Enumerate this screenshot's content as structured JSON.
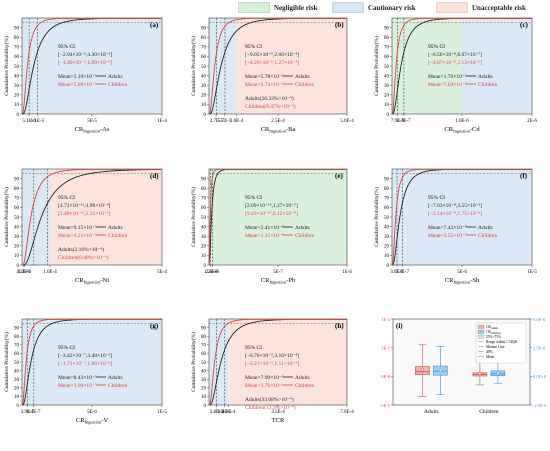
{
  "legend": {
    "items": [
      {
        "label": "Negligible risk",
        "color": "#d6efd9"
      },
      {
        "label": "Cautionary risk",
        "color": "#d7e6f5"
      },
      {
        "label": "Unacceptable risk",
        "color": "#fbe3dc"
      }
    ]
  },
  "colors": {
    "adults": "#222222",
    "children": "#d9443a",
    "cautionary": "#dbe8f6",
    "negligible": "#d9f0dc",
    "unacceptable": "#fbe4dd",
    "box_adults_fill": "#f4a3a0",
    "box_children_fill": "#8ec9ef"
  },
  "chart_data": [
    {
      "type": "line",
      "panel": "(a)",
      "xlabel_main": "CR",
      "xlabel_sub": "Ingestion",
      "xlabel_tail": "-As",
      "ylabel": "Cumulative Probability(%)",
      "xlim": [
        0,
        0.0001
      ],
      "ylim": [
        0,
        100
      ],
      "yticks": [
        0,
        10,
        20,
        30,
        40,
        50,
        60,
        70,
        80,
        90
      ],
      "xtick_labels": [
        "5.1E-6",
        "1.1E-5",
        "5E-5",
        "1E-4"
      ],
      "xtick_values": [
        5.1e-06,
        1.1e-05,
        5e-05,
        0.0001
      ],
      "regions": [
        {
          "zone": "cautionary",
          "from": 0,
          "to": 0.0001
        }
      ],
      "series": [
        {
          "name": "Adults",
          "mean": 1.1e-05
        },
        {
          "name": "Children",
          "mean": 5.1e-06
        }
      ],
      "ci_title": "95% CI",
      "ci_adults": "[−2.94×10⁻⁶,4.30×10⁻⁵]",
      "ci_children": "[−1.40×10⁻⁶,1.99×10⁻⁵]",
      "mean_adults": "Mean=1.10×10⁻⁵",
      "mean_children": "Mean=5.08×10⁻⁶",
      "exceed_adults": "",
      "exceed_children": ""
    },
    {
      "type": "line",
      "panel": "(b)",
      "xlabel_main": "CR",
      "xlabel_sub": "Ingestion",
      "xlabel_tail": "-Ba",
      "ylabel": "Cumulative Probability(%)",
      "xlim": [
        0,
        0.0005
      ],
      "ylim": [
        0,
        100
      ],
      "yticks": [
        0,
        10,
        20,
        30,
        40,
        50,
        60,
        70,
        80,
        90
      ],
      "xtick_labels": [
        "2.7E-5",
        "5.7E-5",
        "1.0E-4",
        "2.5E-4",
        "5.0E-4"
      ],
      "xtick_values": [
        2.7e-05,
        5.7e-05,
        0.0001,
        0.00025,
        0.0005
      ],
      "regions": [
        {
          "zone": "cautionary",
          "from": 0,
          "to": 0.0001
        },
        {
          "zone": "unacceptable",
          "from": 0.0001,
          "to": 0.0005
        }
      ],
      "series": [
        {
          "name": "Adults",
          "mean": 5.78e-05
        },
        {
          "name": "Children",
          "mean": 2.74e-05
        }
      ],
      "ci_title": "95% CI",
      "ci_adults": "[−9.05×10⁻⁶,2.66×10⁻⁴]",
      "ci_children": "[−4.29×10⁻⁶,1.27×10⁻⁴]",
      "mean_adults": "Mean=5.78×10⁻⁵",
      "mean_children": "Mean=2.74×10⁻⁵",
      "exceed_adults": "Adults(26.33%>10⁻⁴)",
      "exceed_children": "Children(8.47%>10⁻⁴)"
    },
    {
      "type": "line",
      "panel": "(c)",
      "xlabel_main": "CR",
      "xlabel_sub": "Ingestion",
      "xlabel_tail": "-Cd",
      "ylabel": "Cumulative Probability(%)",
      "xlim": [
        0,
        2e-06
      ],
      "ylim": [
        0,
        100
      ],
      "yticks": [
        0,
        10,
        20,
        30,
        40,
        50,
        60,
        70,
        80,
        90
      ],
      "xtick_labels": [
        "7.9E-8",
        "1.7E-7",
        "1.0E-6",
        "2E-6"
      ],
      "xtick_values": [
        7.9e-08,
        1.7e-07,
        1e-06,
        2e-06
      ],
      "regions": [
        {
          "zone": "negligible",
          "from": 0,
          "to": 1e-06
        },
        {
          "zone": "cautionary",
          "from": 1e-06,
          "to": 2e-06
        }
      ],
      "series": [
        {
          "name": "Adults",
          "mean": 1.7e-07
        },
        {
          "name": "Children",
          "mean": 7.64e-08
        }
      ],
      "ci_title": "95% CI",
      "ci_adults": "[−6.56×10⁻⁸,6.67×10⁻⁷]",
      "ci_children": "[−3.07×10⁻⁸,3.13×10⁻⁷]",
      "mean_adults": "Mean=1.70×10⁻⁷",
      "mean_children": "Mean=7.64×10⁻⁸",
      "exceed_adults": "",
      "exceed_children": ""
    },
    {
      "type": "line",
      "panel": "(d)",
      "xlabel_main": "CR",
      "xlabel_sub": "Ingestion",
      "xlabel_tail": "-Ni",
      "ylabel": "Cumulative Probability(%)",
      "xlim": [
        0,
        0.0005
      ],
      "ylim": [
        0,
        100
      ],
      "yticks": [
        0,
        10,
        20,
        30,
        40,
        50,
        60,
        70,
        80,
        90
      ],
      "xtick_labels": [
        "4.2E-6",
        "9.2E-6",
        "1.0E-4",
        "5E-4"
      ],
      "xtick_values": [
        4.2e-06,
        9.2e-06,
        0.0001,
        0.0005
      ],
      "regions": [
        {
          "zone": "cautionary",
          "from": 0,
          "to": 0.0001
        },
        {
          "zone": "unacceptable",
          "from": 0.0001,
          "to": 0.0005
        }
      ],
      "series": [
        {
          "name": "Adults",
          "mean": 9.15e-05
        },
        {
          "name": "Children",
          "mean": 4.21e-05
        }
      ],
      "ci_title": "95% CI",
      "ci_adults": "[4.71×10⁻¹²,4.98×10⁻⁴]",
      "ci_children": "[2.40×10⁻¹²,2.31×10⁻⁴]",
      "mean_adults": "Mean=9.15×10⁻⁵",
      "mean_children": "Mean=4.21×10⁻⁵",
      "exceed_adults": "Adults(2.16%>10⁻⁴)",
      "exceed_children": "Children(0.48%>10⁻⁴)"
    },
    {
      "type": "line",
      "panel": "(e)",
      "xlabel_main": "CR",
      "xlabel_sub": "Ingestion",
      "xlabel_tail": "-Pb",
      "ylabel": "Cumulative Probability(%)",
      "xlim": [
        0,
        1e-06
      ],
      "ylim": [
        0,
        100
      ],
      "yticks": [
        0,
        10,
        20,
        30,
        40,
        50,
        60,
        70,
        80,
        90
      ],
      "xtick_labels": [
        "1.2E-8",
        "2.4E-8",
        "5E-7",
        "1E-6"
      ],
      "xtick_values": [
        1.2e-08,
        2.4e-08,
        5e-07,
        1e-06
      ],
      "regions": [
        {
          "zone": "negligible",
          "from": 0,
          "to": 1e-06
        }
      ],
      "series": [
        {
          "name": "Adults",
          "mean": 2.41e-08
        },
        {
          "name": "Children",
          "mean": 1.15e-08
        }
      ],
      "ci_title": "95% CI",
      "ci_adults": "[2.09×10⁻¹⁴,1.27×10⁻⁷]",
      "ci_children": "[9.43×10⁻¹⁵,6.12×10⁻⁸]",
      "mean_adults": "Mean=2.41×10⁻⁸",
      "mean_children": "Mean=1.15×10⁻⁸",
      "exceed_adults": "",
      "exceed_children": ""
    },
    {
      "type": "line",
      "panel": "(f)",
      "xlabel_main": "CR",
      "xlabel_sub": "Ingestion",
      "xlabel_tail": "-Sb",
      "ylabel": "Cumulative Probability(%)",
      "xlim": [
        0,
        1e-05
      ],
      "ylim": [
        0,
        100
      ],
      "yticks": [
        0,
        10,
        20,
        30,
        40,
        50,
        60,
        70,
        80,
        90
      ],
      "xtick_labels": [
        "3.6E-7",
        "7.4E-7",
        "5E-6",
        "1E-5"
      ],
      "xtick_values": [
        3.6e-07,
        7.4e-07,
        5e-06,
        1e-05
      ],
      "regions": [
        {
          "zone": "cautionary",
          "from": 0,
          "to": 1e-05
        }
      ],
      "series": [
        {
          "name": "Adults",
          "mean": 7.43e-07
        },
        {
          "name": "Children",
          "mean": 3.55e-07
        }
      ],
      "ci_title": "95% CI",
      "ci_adults": "[−7.03×10⁻⁸,3.55×10⁻⁶]",
      "ci_children": "[−3.14×10⁻⁸,1.75×10⁻⁶]",
      "mean_adults": "Mean=7.43×10⁻⁷",
      "mean_children": "Mean=3.55×10⁻⁷",
      "exceed_adults": "",
      "exceed_children": ""
    },
    {
      "type": "line",
      "panel": "(g)",
      "xlabel_main": "CR",
      "xlabel_sub": "Ingestion",
      "xlabel_tail": "-V",
      "ylabel": "Cumulative Probability(%)",
      "xlim": [
        0,
        1e-05
      ],
      "ylim": [
        0,
        100
      ],
      "yticks": [
        0,
        10,
        20,
        30,
        40,
        50,
        60,
        70,
        80,
        90
      ],
      "xtick_labels": [
        "3.9E-7",
        "8.4E-7",
        "5E-6",
        "1E-5"
      ],
      "xtick_values": [
        3.9e-07,
        8.4e-07,
        5e-06,
        1e-05
      ],
      "regions": [
        {
          "zone": "cautionary",
          "from": 0,
          "to": 1e-05
        }
      ],
      "series": [
        {
          "name": "Adults",
          "mean": 8.43e-07
        },
        {
          "name": "Children",
          "mean": 3.9e-07
        }
      ],
      "ci_title": "95% CI",
      "ci_adults": "[−3.42×10⁻⁷,3.48×10⁻⁶]",
      "ci_children": "[−1.71×10⁻⁷,1.66×10⁻⁶]",
      "mean_adults": "Mean=8.43×10⁻⁷",
      "mean_children": "Mean=3.90×10⁻⁷",
      "exceed_adults": "",
      "exceed_children": ""
    },
    {
      "type": "line",
      "panel": "(h)",
      "xlabel_main": "TCR",
      "xlabel_sub": "",
      "xlabel_tail": "",
      "ylabel": "Cumulative Probability(%)",
      "xlim": [
        0,
        0.0007
      ],
      "ylim": [
        0,
        100
      ],
      "yticks": [
        0,
        10,
        20,
        30,
        40,
        50,
        60,
        70,
        80,
        90
      ],
      "xtick_labels": [
        "3.8E-5",
        "8.0E-5",
        "1.0E-4",
        "3.5E-4",
        "7.0E-4"
      ],
      "xtick_values": [
        3.8e-05,
        8e-05,
        0.0001,
        0.00035,
        0.0007
      ],
      "regions": [
        {
          "zone": "cautionary",
          "from": 0,
          "to": 0.0001
        },
        {
          "zone": "unacceptable",
          "from": 0.0001,
          "to": 0.0007
        }
      ],
      "series": [
        {
          "name": "Adults",
          "mean": 7.99e-05
        },
        {
          "name": "Children",
          "mean": 3.76e-05
        }
      ],
      "ci_title": "95% CI",
      "ci_adults": "[−6.76×10⁻⁵,3.16×10⁻⁴]",
      "ci_children": "[−3.21×10⁻⁵,1.51×10⁻⁴]",
      "mean_adults": "Mean=7.99×10⁻⁵",
      "mean_children": "Mean=3.76×10⁻⁵",
      "exceed_adults": "Adults(33.08%>10⁻⁴)",
      "exceed_children": "Children(12.9%>10⁻⁴)"
    },
    {
      "type": "box",
      "panel": "(i)",
      "categories": [
        "Adults",
        "Children"
      ],
      "left_yticks": [
        "-5E-5",
        "0E-6",
        "5E-5",
        "1E-4"
      ],
      "left_ytick_values": [
        -5e-05,
        0,
        5e-05,
        0.0001
      ],
      "right_yticks": [
        "-2.5E-6",
        "0.0E+0",
        "2.5E-6",
        "5.0E-6"
      ],
      "right_ytick_values": [
        -2.5e-06,
        0,
        2.5e-06,
        5e-06
      ],
      "legend": [
        {
          "label": "CRAdults",
          "main": "CR",
          "sub": "Adults"
        },
        {
          "label": "CRChildren",
          "main": "CR",
          "sub": "Children"
        },
        {
          "label": "25%~75%",
          "main": "25%~75%",
          "sub": ""
        },
        {
          "label": "Range within 1.5IQR",
          "main": "Range within 1.5IQR",
          "sub": ""
        },
        {
          "label": "Median Line",
          "main": "Median Line",
          "sub": ""
        },
        {
          "label": "40%",
          "main": "40%",
          "sub": ""
        },
        {
          "label": "Mean",
          "main": "Mean",
          "sub": ""
        }
      ],
      "groups": [
        {
          "name": "Adults",
          "adults": {
            "min": -3.5e-05,
            "q1": 3e-06,
            "median": 8e-06,
            "q3": 1.7e-05,
            "max": 5.5e-05,
            "mean": 1.1e-05
          },
          "children": {
            "min": -3.2e-05,
            "q1": 2e-06,
            "median": 9e-06,
            "q3": 1.8e-05,
            "max": 5.2e-05,
            "mean": 1e-05
          }
        },
        {
          "name": "Children",
          "adults": {
            "min": -1.5e-05,
            "q1": 5e-07,
            "median": 3e-06,
            "q3": 6e-06,
            "max": 2.4e-05,
            "mean": 4e-06
          },
          "children": {
            "min": -1.2e-05,
            "q1": 1e-06,
            "median": 4.5e-06,
            "q3": 9.5e-06,
            "max": 2.8e-05,
            "mean": 5e-06
          }
        }
      ]
    }
  ]
}
